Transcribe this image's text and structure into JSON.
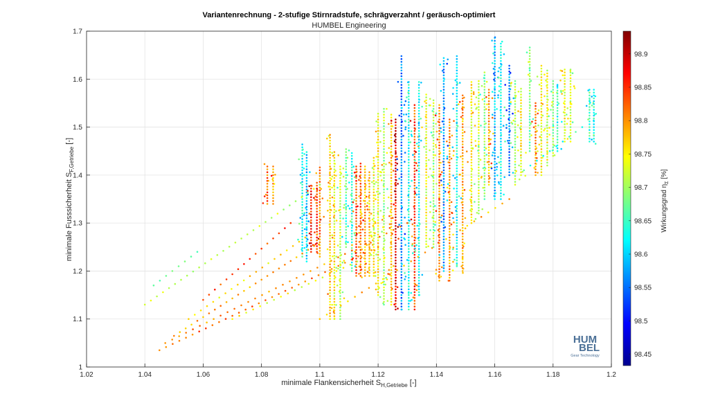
{
  "chart_data": {
    "type": "scatter",
    "title": "Variantenrechnung - 2-stufige Stirnradstufe, schrägverzahnt / geräusch-optimiert",
    "subtitle": "HUMBEL Engineering",
    "xlabel": {
      "main": "minimale Flankensicherheit S",
      "sub": "H,Getriebe",
      "suffix": " [-]"
    },
    "ylabel": {
      "main": "minimale Fusssicherheit S",
      "sub": "F,Getriebe",
      "suffix": " [-]"
    },
    "xlim": [
      1.02,
      1.2
    ],
    "ylim": [
      1.0,
      1.7
    ],
    "xticks": [
      "1.02",
      "1.04",
      "1.06",
      "1.08",
      "1.1",
      "1.12",
      "1.14",
      "1.16",
      "1.18",
      "1.2"
    ],
    "yticks": [
      "1",
      "1.1",
      "1.2",
      "1.3",
      "1.4",
      "1.5",
      "1.6",
      "1.7"
    ],
    "grid": true,
    "colorbar": {
      "label": {
        "main": "Wirkungsgrad η",
        "sub": "Σ",
        "suffix": " [%]"
      },
      "range": [
        98.433,
        98.934
      ],
      "ticks": [
        "98.45",
        "98.5",
        "98.55",
        "98.6",
        "98.65",
        "98.7",
        "98.75",
        "98.8",
        "98.85",
        "98.9"
      ],
      "colormap": "jet"
    },
    "logo": {
      "line1": "HUM",
      "line2": "BEL",
      "tagline": "Gear Technology",
      "color": "#4a6f96"
    },
    "strips": [
      {
        "x": 1.082,
        "y": [
          1.34,
          1.42
        ],
        "eta": 98.82
      },
      {
        "x": 1.084,
        "y": [
          1.34,
          1.42
        ],
        "eta": 98.8
      },
      {
        "x": 1.094,
        "y": [
          1.23,
          1.47
        ],
        "eta": 98.63
      },
      {
        "x": 1.0955,
        "y": [
          1.22,
          1.45
        ],
        "eta": 98.6
      },
      {
        "x": 1.097,
        "y": [
          1.24,
          1.38
        ],
        "eta": 98.86
      },
      {
        "x": 1.099,
        "y": [
          1.24,
          1.39
        ],
        "eta": 98.85
      },
      {
        "x": 1.1,
        "y": [
          1.23,
          1.42
        ],
        "eta": 98.81
      },
      {
        "x": 1.1035,
        "y": [
          1.1,
          1.49
        ],
        "eta": 98.77
      },
      {
        "x": 1.105,
        "y": [
          1.1,
          1.45
        ],
        "eta": 98.75
      },
      {
        "x": 1.107,
        "y": [
          1.1,
          1.42
        ],
        "eta": 98.71
      },
      {
        "x": 1.109,
        "y": [
          1.25,
          1.46
        ],
        "eta": 98.66
      },
      {
        "x": 1.111,
        "y": [
          1.2,
          1.45
        ],
        "eta": 98.64
      },
      {
        "x": 1.1125,
        "y": [
          1.19,
          1.42
        ],
        "eta": 98.83
      },
      {
        "x": 1.114,
        "y": [
          1.19,
          1.43
        ],
        "eta": 98.82
      },
      {
        "x": 1.1155,
        "y": [
          1.19,
          1.42
        ],
        "eta": 98.79
      },
      {
        "x": 1.117,
        "y": [
          1.19,
          1.41
        ],
        "eta": 98.77
      },
      {
        "x": 1.1185,
        "y": [
          1.19,
          1.44
        ],
        "eta": 98.74
      },
      {
        "x": 1.12,
        "y": [
          1.15,
          1.53
        ],
        "eta": 98.75
      },
      {
        "x": 1.122,
        "y": [
          1.13,
          1.54
        ],
        "eta": 98.7
      },
      {
        "x": 1.1245,
        "y": [
          1.13,
          1.53
        ],
        "eta": 98.78
      },
      {
        "x": 1.126,
        "y": [
          1.12,
          1.52
        ],
        "eta": 98.88
      },
      {
        "x": 1.128,
        "y": [
          1.12,
          1.65
        ],
        "eta": 98.56
      },
      {
        "x": 1.1305,
        "y": [
          1.12,
          1.6
        ],
        "eta": 98.63
      },
      {
        "x": 1.1325,
        "y": [
          1.12,
          1.55
        ],
        "eta": 98.84
      },
      {
        "x": 1.134,
        "y": [
          1.15,
          1.6
        ],
        "eta": 98.62
      },
      {
        "x": 1.1365,
        "y": [
          1.25,
          1.57
        ],
        "eta": 98.74
      },
      {
        "x": 1.139,
        "y": [
          1.25,
          1.56
        ],
        "eta": 98.7
      },
      {
        "x": 1.141,
        "y": [
          1.18,
          1.55
        ],
        "eta": 98.81
      },
      {
        "x": 1.1425,
        "y": [
          1.2,
          1.65
        ],
        "eta": 98.57
      },
      {
        "x": 1.1445,
        "y": [
          1.18,
          1.52
        ],
        "eta": 98.8
      },
      {
        "x": 1.147,
        "y": [
          1.21,
          1.65
        ],
        "eta": 98.62
      },
      {
        "x": 1.149,
        "y": [
          1.2,
          1.57
        ],
        "eta": 98.79
      },
      {
        "x": 1.152,
        "y": [
          1.3,
          1.6
        ],
        "eta": 98.75
      },
      {
        "x": 1.1545,
        "y": [
          1.32,
          1.6
        ],
        "eta": 98.72
      },
      {
        "x": 1.1565,
        "y": [
          1.35,
          1.62
        ],
        "eta": 98.68
      },
      {
        "x": 1.158,
        "y": [
          1.38,
          1.58
        ],
        "eta": 98.79
      },
      {
        "x": 1.16,
        "y": [
          1.35,
          1.69
        ],
        "eta": 98.58
      },
      {
        "x": 1.1621,
        "y": [
          1.35,
          1.68
        ],
        "eta": 98.62
      },
      {
        "x": 1.165,
        "y": [
          1.4,
          1.63
        ],
        "eta": 98.56
      },
      {
        "x": 1.167,
        "y": [
          1.38,
          1.6
        ],
        "eta": 98.7
      },
      {
        "x": 1.169,
        "y": [
          1.4,
          1.58
        ],
        "eta": 98.74
      },
      {
        "x": 1.172,
        "y": [
          1.45,
          1.67
        ],
        "eta": 98.68
      },
      {
        "x": 1.174,
        "y": [
          1.4,
          1.55
        ],
        "eta": 98.81
      },
      {
        "x": 1.176,
        "y": [
          1.4,
          1.63
        ],
        "eta": 98.75
      },
      {
        "x": 1.178,
        "y": [
          1.42,
          1.62
        ],
        "eta": 98.73
      },
      {
        "x": 1.18,
        "y": [
          1.44,
          1.6
        ],
        "eta": 98.7
      },
      {
        "x": 1.1815,
        "y": [
          1.45,
          1.59
        ],
        "eta": 98.64
      },
      {
        "x": 1.184,
        "y": [
          1.47,
          1.62
        ],
        "eta": 98.74
      },
      {
        "x": 1.186,
        "y": [
          1.47,
          1.62
        ],
        "eta": 98.72
      },
      {
        "x": 1.1925,
        "y": [
          1.47,
          1.58
        ],
        "eta": 98.65
      },
      {
        "x": 1.194,
        "y": [
          1.47,
          1.58
        ],
        "eta": 98.63
      }
    ],
    "lines": [
      {
        "x": [
          1.04,
          1.1
        ],
        "y": [
          1.13,
          1.38
        ],
        "eta": 98.72,
        "n": 30
      },
      {
        "x": 1.043,
        "y": 1.17,
        "x2": 1.058,
        "y2": 1.24,
        "eta": 98.68,
        "n": 8
      },
      {
        "x": [
          1.045,
          1.12
        ],
        "y": [
          1.035,
          1.25
        ],
        "eta": 98.82,
        "n": 34
      },
      {
        "x": [
          1.047,
          1.13
        ],
        "y": [
          1.05,
          1.3
        ],
        "eta": 98.8,
        "n": 36
      },
      {
        "x": [
          1.05,
          1.1
        ],
        "y": [
          1.065,
          1.26
        ],
        "eta": 98.79,
        "n": 26
      },
      {
        "x": [
          1.055,
          1.095
        ],
        "y": [
          1.1,
          1.27
        ],
        "eta": 98.76,
        "n": 20
      },
      {
        "x": [
          1.06,
          1.09
        ],
        "y": [
          1.14,
          1.3
        ],
        "eta": 98.84,
        "n": 16
      },
      {
        "x": [
          1.07,
          1.12
        ],
        "y": [
          1.1,
          1.24
        ],
        "eta": 98.74,
        "n": 22
      },
      {
        "x": [
          1.1,
          1.165
        ],
        "y": [
          1.1,
          1.35
        ],
        "eta": 98.78,
        "n": 28
      },
      {
        "x": [
          1.17,
          1.19
        ],
        "y": [
          1.41,
          1.5
        ],
        "eta": 98.64,
        "n": 10
      }
    ]
  }
}
